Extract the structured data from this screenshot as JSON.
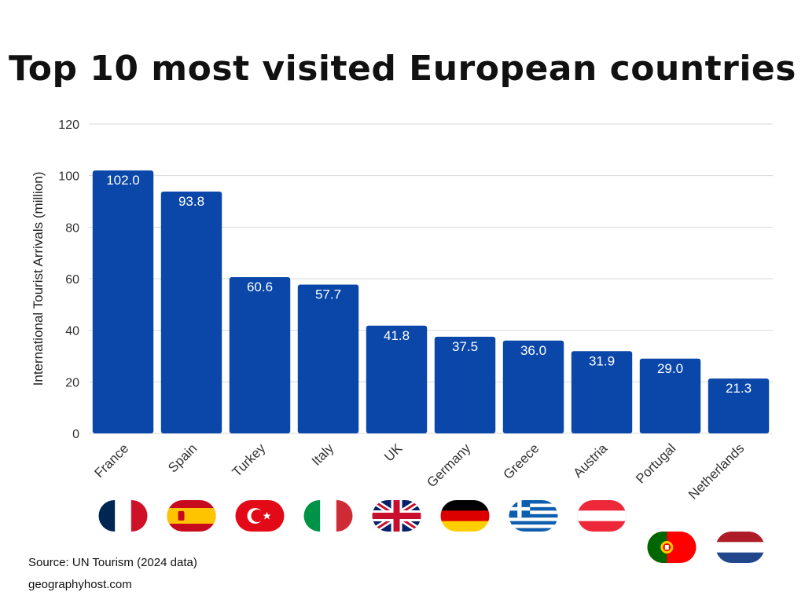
{
  "chart_data": {
    "type": "bar",
    "title": "Top 10 most visited European countries",
    "ylabel": "International Tourist Arrivals (million)",
    "xlabel": "",
    "ylim": [
      0,
      120
    ],
    "yticks": [
      0,
      20,
      40,
      60,
      80,
      100,
      120
    ],
    "grid": true,
    "categories": [
      "France",
      "Spain",
      "Turkey",
      "Italy",
      "UK",
      "Germany",
      "Greece",
      "Austria",
      "Portugal",
      "Netherlands"
    ],
    "values": [
      102.0,
      93.8,
      60.6,
      57.7,
      41.8,
      37.5,
      36.0,
      31.9,
      29.0,
      21.3
    ],
    "value_labels": [
      "102.0",
      "93.8",
      "60.6",
      "57.7",
      "41.8",
      "37.5",
      "36.0",
      "31.9",
      "29.0",
      "21.3"
    ],
    "bar_color": "#0a47a9",
    "grid_color": "#d9d9d9"
  },
  "flags": [
    {
      "country": "France",
      "icon": "flag-france-icon",
      "colors": [
        "#002654",
        "#ffffff",
        "#ce1126"
      ]
    },
    {
      "country": "Spain",
      "icon": "flag-spain-icon",
      "colors": [
        "#c60b1e",
        "#ffc400"
      ]
    },
    {
      "country": "Turkey",
      "icon": "flag-turkey-icon",
      "colors": [
        "#e30a17",
        "#ffffff"
      ]
    },
    {
      "country": "Italy",
      "icon": "flag-italy-icon",
      "colors": [
        "#009246",
        "#ffffff",
        "#ce2b37"
      ]
    },
    {
      "country": "UK",
      "icon": "flag-uk-icon",
      "colors": [
        "#012169",
        "#ffffff",
        "#c8102e"
      ]
    },
    {
      "country": "Germany",
      "icon": "flag-germany-icon",
      "colors": [
        "#000000",
        "#dd0000",
        "#ffce00"
      ]
    },
    {
      "country": "Greece",
      "icon": "flag-greece-icon",
      "colors": [
        "#0d5eaf",
        "#ffffff"
      ]
    },
    {
      "country": "Austria",
      "icon": "flag-austria-icon",
      "colors": [
        "#ed2939",
        "#ffffff"
      ]
    },
    {
      "country": "Portugal",
      "icon": "flag-portugal-icon",
      "colors": [
        "#006600",
        "#ff0000",
        "#ffcc00"
      ]
    },
    {
      "country": "Netherlands",
      "icon": "flag-netherlands-icon",
      "colors": [
        "#ae1c28",
        "#ffffff",
        "#21468b"
      ]
    }
  ],
  "footer": {
    "source": "Source: UN Tourism (2024 data)",
    "site": "geographyhost.com"
  }
}
